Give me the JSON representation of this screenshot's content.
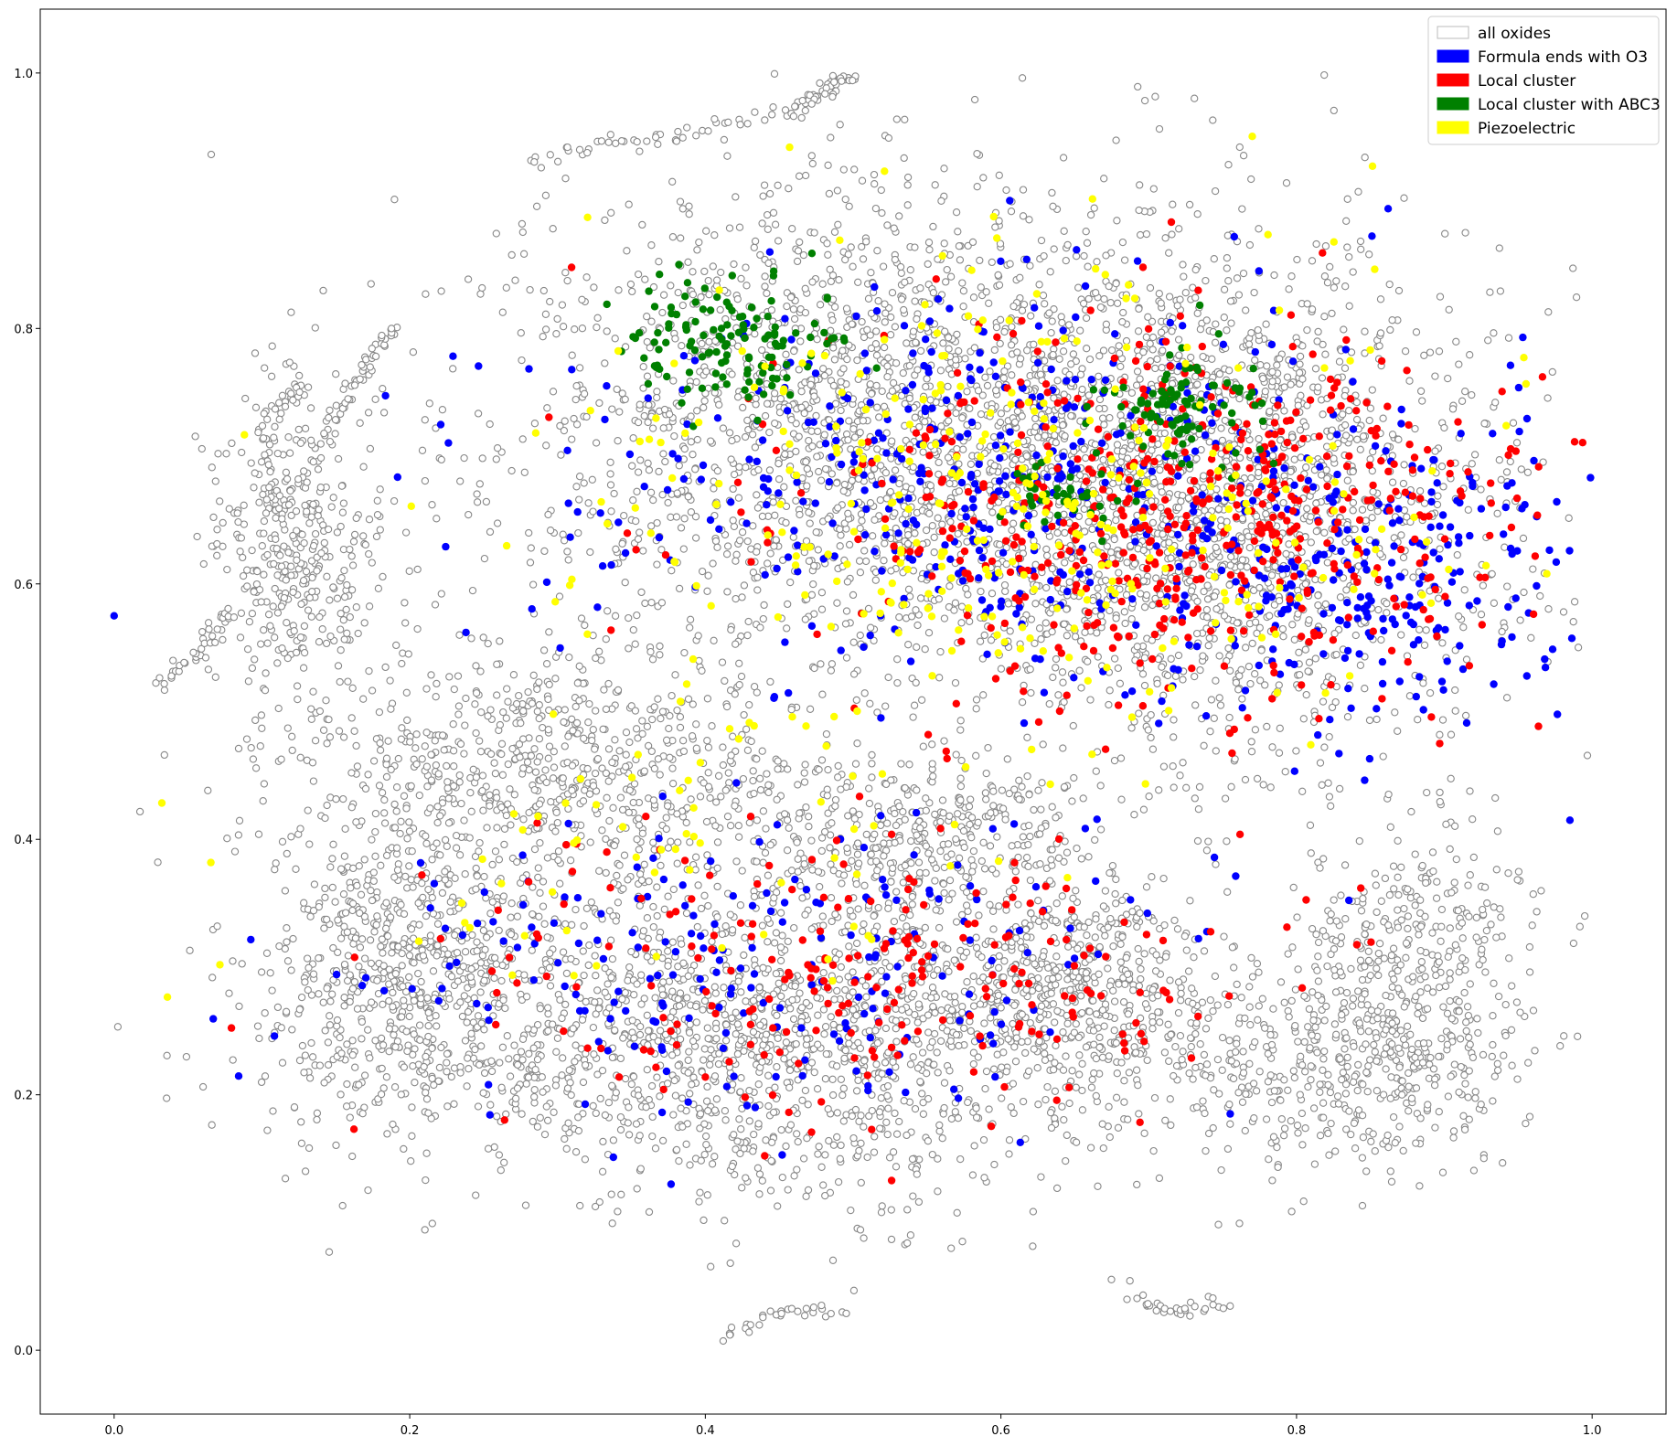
{
  "chart_data": {
    "type": "scatter",
    "title": "",
    "xlabel": "",
    "ylabel": "",
    "xlim": [
      -0.05,
      1.05
    ],
    "ylim": [
      -0.05,
      1.05
    ],
    "x_ticks": [
      0.0,
      0.2,
      0.4,
      0.6,
      0.8,
      1.0
    ],
    "x_tick_labels": [
      "0.0",
      "0.2",
      "0.4",
      "0.6",
      "0.8",
      "1.0"
    ],
    "y_ticks": [
      0.0,
      0.2,
      0.4,
      0.6,
      0.8,
      1.0
    ],
    "y_tick_labels": [
      "0.0",
      "0.2",
      "0.4",
      "0.6",
      "0.8",
      "1.0"
    ],
    "grid": false,
    "legend_position": "top-right",
    "series": [
      {
        "name": "all oxides",
        "marker": "open-circle",
        "color": "#888888",
        "fill": "#ffffff",
        "regions": [
          {
            "cx": 0.55,
            "cy": 0.72,
            "rx": 0.3,
            "ry": 0.2,
            "weight": 6
          },
          {
            "cx": 0.75,
            "cy": 0.65,
            "rx": 0.2,
            "ry": 0.18,
            "weight": 4
          },
          {
            "cx": 0.45,
            "cy": 0.25,
            "rx": 0.3,
            "ry": 0.13,
            "weight": 5
          },
          {
            "cx": 0.3,
            "cy": 0.45,
            "rx": 0.2,
            "ry": 0.1,
            "weight": 2
          },
          {
            "cx": 0.2,
            "cy": 0.3,
            "rx": 0.1,
            "ry": 0.12,
            "weight": 1.5
          },
          {
            "cx": 0.12,
            "cy": 0.62,
            "rx": 0.06,
            "ry": 0.12,
            "weight": 1
          },
          {
            "cx": 0.88,
            "cy": 0.3,
            "rx": 0.08,
            "ry": 0.12,
            "weight": 1
          },
          {
            "cx": 0.82,
            "cy": 0.22,
            "rx": 0.12,
            "ry": 0.08,
            "weight": 1
          },
          {
            "cx": 0.55,
            "cy": 0.4,
            "rx": 0.12,
            "ry": 0.06,
            "weight": 1
          },
          {
            "cx": 0.65,
            "cy": 0.28,
            "rx": 0.1,
            "ry": 0.06,
            "weight": 1
          }
        ],
        "arcs": [
          {
            "x": [
              0.28,
              0.36,
              0.46,
              0.5,
              0.46
            ],
            "y": [
              0.93,
              0.95,
              0.97,
              1.0,
              0.97
            ],
            "count": 90
          },
          {
            "x": [
              0.13,
              0.1,
              0.11,
              0.15,
              0.17,
              0.19
            ],
            "y": [
              0.76,
              0.72,
              0.65,
              0.73,
              0.77,
              0.8
            ],
            "count": 110
          },
          {
            "x": [
              0.03,
              0.06,
              0.08
            ],
            "y": [
              0.52,
              0.55,
              0.58
            ],
            "count": 40
          },
          {
            "x": [
              0.62,
              0.66,
              0.7
            ],
            "y": [
              0.34,
              0.33,
              0.34
            ],
            "count": 40
          },
          {
            "x": [
              0.69,
              0.72,
              0.75
            ],
            "y": [
              0.04,
              0.03,
              0.04
            ],
            "count": 30
          },
          {
            "x": [
              0.41,
              0.45,
              0.49
            ],
            "y": [
              0.01,
              0.03,
              0.03
            ],
            "count": 30
          }
        ],
        "total_points": 9000
      },
      {
        "name": "Formula ends with O3",
        "marker": "filled-circle",
        "color": "#0000ff",
        "regions": [
          {
            "cx": 0.62,
            "cy": 0.68,
            "rx": 0.3,
            "ry": 0.16,
            "weight": 5
          },
          {
            "cx": 0.45,
            "cy": 0.3,
            "rx": 0.28,
            "ry": 0.12,
            "weight": 2
          },
          {
            "cx": 0.85,
            "cy": 0.6,
            "rx": 0.12,
            "ry": 0.12,
            "weight": 2
          }
        ],
        "total_points": 900
      },
      {
        "name": "Local cluster",
        "marker": "filled-circle",
        "color": "#ff0000",
        "regions": [
          {
            "cx": 0.72,
            "cy": 0.66,
            "rx": 0.24,
            "ry": 0.14,
            "weight": 5
          },
          {
            "cx": 0.5,
            "cy": 0.3,
            "rx": 0.28,
            "ry": 0.12,
            "weight": 2
          }
        ],
        "total_points": 800
      },
      {
        "name": "Local cluster with ABC3",
        "marker": "filled-circle",
        "color": "#008000",
        "regions": [
          {
            "cx": 0.42,
            "cy": 0.79,
            "rx": 0.08,
            "ry": 0.05,
            "weight": 3
          },
          {
            "cx": 0.72,
            "cy": 0.74,
            "rx": 0.06,
            "ry": 0.05,
            "weight": 2
          },
          {
            "cx": 0.64,
            "cy": 0.67,
            "rx": 0.04,
            "ry": 0.03,
            "weight": 1
          }
        ],
        "total_points": 260
      },
      {
        "name": "Piezoelectric",
        "marker": "filled-circle",
        "color": "#ffff00",
        "regions": [
          {
            "cx": 0.62,
            "cy": 0.68,
            "rx": 0.3,
            "ry": 0.18,
            "weight": 4
          },
          {
            "cx": 0.4,
            "cy": 0.4,
            "rx": 0.25,
            "ry": 0.12,
            "weight": 1
          }
        ],
        "total_points": 400
      }
    ],
    "isolated_points": [
      {
        "x": 0.0,
        "y": 0.575,
        "series": "Formula ends with O3"
      },
      {
        "x": 0.985,
        "y": 0.415,
        "series": "Formula ends with O3"
      },
      {
        "x": 0.995,
        "y": 0.34,
        "series": "all oxides"
      }
    ]
  },
  "legend": {
    "items": [
      {
        "label": "all oxides",
        "fill": "#ffffff",
        "stroke": "#bbbbbb"
      },
      {
        "label": "Formula ends with O3",
        "fill": "#0000ff",
        "stroke": "#0000ff"
      },
      {
        "label": "Local cluster",
        "fill": "#ff0000",
        "stroke": "#ff0000"
      },
      {
        "label": "Local cluster with ABC3",
        "fill": "#008000",
        "stroke": "#008000"
      },
      {
        "label": "Piezoelectric",
        "fill": "#ffff00",
        "stroke": "#ffff00"
      }
    ]
  }
}
